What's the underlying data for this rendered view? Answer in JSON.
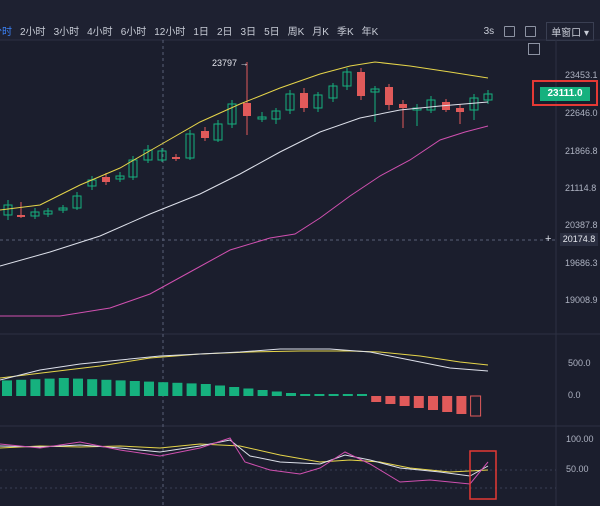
{
  "toolbar": {
    "timeframes": [
      {
        "label": "分时",
        "active": true
      },
      {
        "label": "2小时",
        "active": false
      },
      {
        "label": "3小时",
        "active": false
      },
      {
        "label": "4小时",
        "active": false
      },
      {
        "label": "6小时",
        "active": false
      },
      {
        "label": "12小时",
        "active": false
      },
      {
        "label": "1日",
        "active": false
      },
      {
        "label": "2日",
        "active": false
      },
      {
        "label": "3日",
        "active": false
      },
      {
        "label": "5日",
        "active": false
      },
      {
        "label": "周K",
        "active": false
      },
      {
        "label": "月K",
        "active": false
      },
      {
        "label": "季K",
        "active": false
      },
      {
        "label": "年K",
        "active": false
      }
    ],
    "interval": "3s",
    "window_mode": "单窗口"
  },
  "price_axis": [
    "23453.1",
    "22646.0",
    "21866.8",
    "21114.8",
    "20387.8",
    "19686.3",
    "19008.9"
  ],
  "current_price": "23111.0",
  "crosshair_price": "20174.8",
  "high_annotation": "23797 →",
  "macd_axis": [
    "500.0",
    "0.0"
  ],
  "kdj_axis": [
    "100.00",
    "50.00"
  ],
  "colors": {
    "up": "#16b17e",
    "down": "#e05a5a",
    "ma_fast": "#e6d54a",
    "ma_slow": "#dde0ea",
    "ma_long": "#d050b0",
    "accent": "#3b82f6",
    "highlight": "#e53935"
  }
}
